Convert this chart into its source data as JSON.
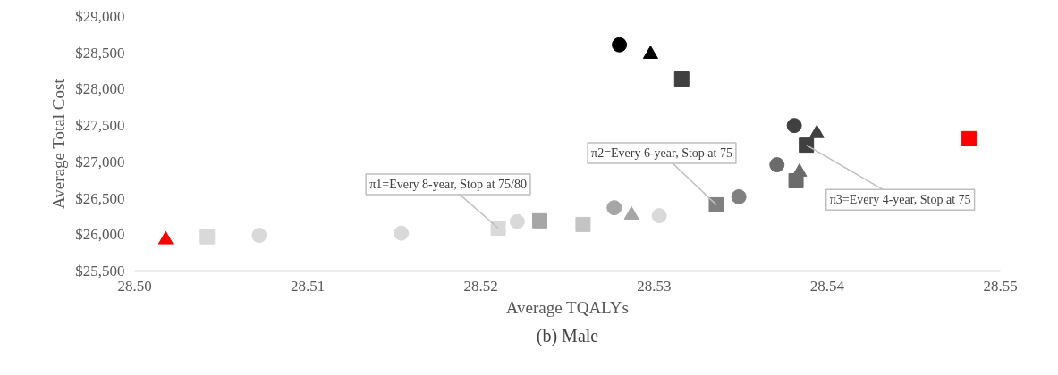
{
  "chart_data": {
    "type": "scatter",
    "title": "(b) Male",
    "xlabel": "Average TQALYs",
    "ylabel": "Average Total Cost",
    "xlim": [
      28.5,
      28.55
    ],
    "xticks": [
      {
        "value": 28.5,
        "label": "28.50"
      },
      28.51,
      28.52,
      28.53,
      28.54,
      {
        "value": 28.55,
        "label": "28.55"
      }
    ],
    "ylim": [
      25500,
      29000
    ],
    "yticks": [
      {
        "value": 25500,
        "label": "$25,500"
      },
      {
        "value": 26000,
        "label": "$26,000"
      },
      {
        "value": 26500,
        "label": "$26,500"
      },
      {
        "value": 27000,
        "label": "$27,000"
      },
      {
        "value": 27500,
        "label": "$27,500"
      },
      {
        "value": 28000,
        "label": "$28,000"
      },
      {
        "value": 28500,
        "label": "$28,500"
      },
      {
        "value": 29000,
        "label": "$29,000"
      }
    ],
    "grid": false,
    "series": [
      {
        "color": "#d9d9d9",
        "marker": "square",
        "x": [
          28.5042,
          28.521
        ],
        "values": [
          25970,
          26090
        ]
      },
      {
        "color": "#d9d9d9",
        "marker": "circle",
        "x": [
          28.5072,
          28.5154,
          28.5221,
          28.5303
        ],
        "values": [
          25990,
          26020,
          26180,
          26260
        ]
      },
      {
        "color": "#a6a6a6",
        "marker": "square",
        "x": [
          28.5234
        ],
        "values": [
          26190
        ]
      },
      {
        "color": "#c4c4c4",
        "marker": "square",
        "x": [
          28.5259
        ],
        "values": [
          26140
        ]
      },
      {
        "color": "#a6a6a6",
        "marker": "circle",
        "x": [
          28.5277
        ],
        "values": [
          26370
        ]
      },
      {
        "color": "#a6a6a6",
        "marker": "triangle",
        "x": [
          28.5287
        ],
        "values": [
          26270
        ]
      },
      {
        "color": "#808080",
        "marker": "square",
        "x": [
          28.5336
        ],
        "values": [
          26410
        ]
      },
      {
        "color": "#808080",
        "marker": "circle",
        "x": [
          28.5349
        ],
        "values": [
          26520
        ]
      },
      {
        "color": "#000000",
        "marker": "circle",
        "x": [
          28.528
        ],
        "values": [
          28610
        ]
      },
      {
        "color": "#000000",
        "marker": "triangle",
        "x": [
          28.5298
        ],
        "values": [
          28480
        ]
      },
      {
        "color": "#404040",
        "marker": "square",
        "x": [
          28.5316,
          28.5388
        ],
        "values": [
          28140,
          27230
        ]
      },
      {
        "color": "#404040",
        "marker": "circle",
        "x": [
          28.5381
        ],
        "values": [
          27500
        ]
      },
      {
        "color": "#404040",
        "marker": "triangle",
        "x": [
          28.5394
        ],
        "values": [
          27390
        ]
      },
      {
        "color": "#6b6b6b",
        "marker": "circle",
        "x": [
          28.5371
        ],
        "values": [
          26960
        ]
      },
      {
        "color": "#6b6b6b",
        "marker": "triangle",
        "x": [
          28.5384
        ],
        "values": [
          26860
        ]
      },
      {
        "color": "#6b6b6b",
        "marker": "square",
        "x": [
          28.5382
        ],
        "values": [
          26740
        ]
      },
      {
        "color": "#ff0000",
        "marker": "triangle",
        "x": [
          28.5018
        ],
        "values": [
          25930
        ]
      },
      {
        "color": "#ff0000",
        "marker": "square",
        "x": [
          28.5482
        ],
        "values": [
          27320
        ]
      }
    ],
    "annotations": [
      {
        "text": "π1=Every 8-year, Stop at 75/80",
        "x": 28.521,
        "y": 26090
      },
      {
        "text": "π2=Every 6-year, Stop at 75",
        "x": 28.5336,
        "y": 26410
      },
      {
        "text": "π3=Every 4-year, Stop at 75",
        "x": 28.5388,
        "y": 27230
      }
    ]
  }
}
